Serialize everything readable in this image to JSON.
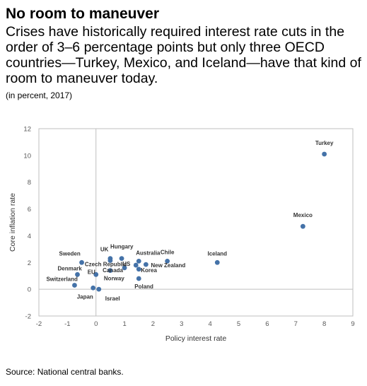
{
  "title": "No room to maneuver",
  "subtitle": "Crises have historically required interest rate cuts in the order of 3–6 percentage points but only three OECD countries—Turkey, Mexico, and Iceland—have that kind of room to maneuver today.",
  "unit_note": "(in percent, 2017)",
  "source": "Source: National central banks.",
  "colors": {
    "point": "#4472a8",
    "axis": "#bfbfbf",
    "zero_line": "#bfbfbf"
  },
  "chart_data": {
    "type": "scatter",
    "xlabel": "Policy interest rate",
    "ylabel": "Core inflation rate",
    "xlim": [
      -2,
      9
    ],
    "ylim": [
      -2,
      12
    ],
    "x_ticks": [
      -2,
      -1,
      0,
      1,
      2,
      3,
      4,
      5,
      6,
      7,
      8,
      9
    ],
    "y_ticks": [
      -2,
      0,
      2,
      4,
      6,
      8,
      10,
      12
    ],
    "grid": false,
    "points": [
      {
        "label": "Turkey",
        "x": 8.0,
        "y": 10.1
      },
      {
        "label": "Mexico",
        "x": 7.25,
        "y": 4.7
      },
      {
        "label": "Iceland",
        "x": 4.25,
        "y": 2.0
      },
      {
        "label": "Chile",
        "x": 2.5,
        "y": 2.1
      },
      {
        "label": "New Zealand",
        "x": 1.75,
        "y": 1.85
      },
      {
        "label": "Australia",
        "x": 1.5,
        "y": 2.1
      },
      {
        "label": "Korea",
        "x": 1.5,
        "y": 1.5
      },
      {
        "label": "Canada",
        "x": 1.0,
        "y": 1.6
      },
      {
        "label": "Poland",
        "x": 1.5,
        "y": 0.8
      },
      {
        "label": "Hungary",
        "x": 0.9,
        "y": 2.3
      },
      {
        "label": "US",
        "x": 1.4,
        "y": 1.8
      },
      {
        "label": "UK",
        "x": 0.5,
        "y": 2.3
      },
      {
        "label": "Czech Republic",
        "x": 0.5,
        "y": 2.15
      },
      {
        "label": "Norway",
        "x": 0.5,
        "y": 1.4
      },
      {
        "label": "EU",
        "x": 0.0,
        "y": 1.1
      },
      {
        "label": "Sweden",
        "x": -0.5,
        "y": 2.0
      },
      {
        "label": "Denmark",
        "x": -0.65,
        "y": 1.1
      },
      {
        "label": "Switzerland",
        "x": -0.75,
        "y": 0.3
      },
      {
        "label": "Japan",
        "x": -0.1,
        "y": 0.1
      },
      {
        "label": "Israel",
        "x": 0.1,
        "y": 0.0
      }
    ]
  }
}
